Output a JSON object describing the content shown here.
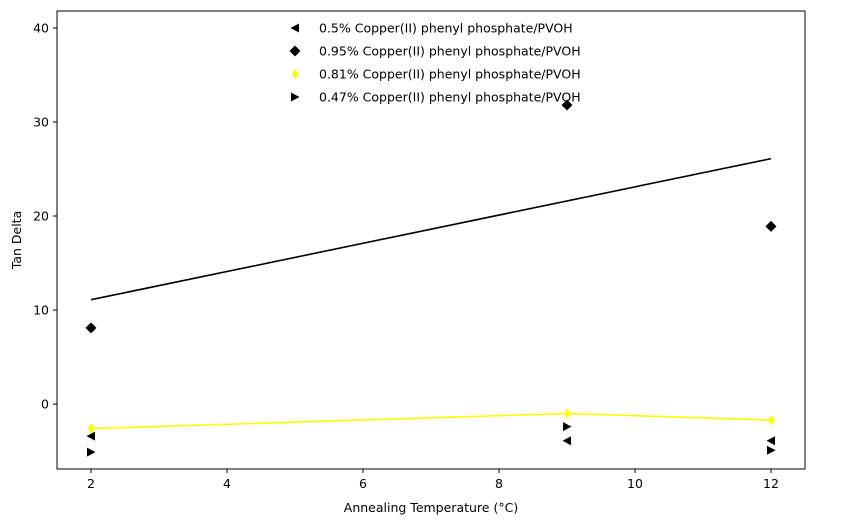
{
  "chart_data": {
    "type": "scatter",
    "xlabel": "Annealing Temperature (°C)",
    "ylabel": "Tan Delta",
    "xlim": [
      1.5,
      12.5
    ],
    "ylim": [
      -6.9,
      41.8
    ],
    "xticks": [
      2,
      4,
      6,
      8,
      10,
      12
    ],
    "xtick_labels": [
      "2",
      "4",
      "6",
      "8",
      "10",
      "12"
    ],
    "yticks": [
      0,
      10,
      20,
      30,
      40
    ],
    "ytick_labels": [
      "0",
      "10",
      "20",
      "30",
      "40"
    ],
    "grid": false,
    "legend_position": "top-center",
    "series": [
      {
        "name": "0.5% Copper(II) phenyl phosphate/PVOH",
        "marker": "triangle-left",
        "color": "#000000",
        "x": [
          2,
          9,
          12
        ],
        "y": [
          -3.4,
          -3.9,
          -3.9
        ]
      },
      {
        "name": "0.95% Copper(II) phenyl phosphate/PVOH",
        "marker": "diamond",
        "color": "#000000",
        "x": [
          2,
          9,
          12
        ],
        "y": [
          8.1,
          31.8,
          18.9
        ],
        "fit_line": {
          "x": [
            2,
            12
          ],
          "y": [
            11.1,
            26.1
          ]
        }
      },
      {
        "name": "0.81% Copper(II) phenyl phosphate/PVOH",
        "marker": "thin-diamond",
        "color": "#ffff00",
        "x": [
          2,
          9,
          12
        ],
        "y": [
          -2.6,
          -1.0,
          -1.7
        ],
        "line": true
      },
      {
        "name": "0.47% Copper(II) phenyl phosphate/PVOH",
        "marker": "triangle-right",
        "color": "#000000",
        "x": [
          2,
          9,
          12
        ],
        "y": [
          -5.1,
          -2.4,
          -4.9
        ]
      }
    ]
  }
}
